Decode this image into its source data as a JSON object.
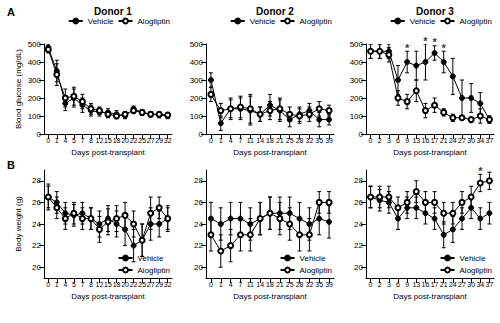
{
  "chart_data": [
    {
      "type": "line",
      "panel_label": "A",
      "title": "Donor 1",
      "x_label": "Days post-transplant",
      "y_label": "Blood glucose (mg/dL)",
      "categories": [
        "0",
        "1",
        "4",
        "5",
        "7",
        "8",
        "12",
        "15",
        "18",
        "20",
        "22",
        "25",
        "27",
        "29",
        "32"
      ],
      "series": [
        {
          "name": "Vehicle",
          "color": "#000000",
          "marker": "filled circle",
          "values": [
            480,
            350,
            170,
            200,
            160,
            130,
            120,
            120,
            110,
            100,
            140,
            120,
            110,
            105,
            100
          ],
          "errors": [
            20,
            60,
            40,
            50,
            40,
            30,
            20,
            20,
            20,
            15,
            15,
            15,
            15,
            15,
            15
          ]
        },
        {
          "name": "Alogliptin",
          "color": "#000000",
          "marker": "open circle",
          "values": [
            470,
            330,
            200,
            210,
            180,
            140,
            130,
            110,
            100,
            110,
            130,
            120,
            110,
            110,
            105
          ],
          "errors": [
            20,
            60,
            50,
            50,
            40,
            30,
            20,
            20,
            15,
            15,
            15,
            15,
            15,
            15,
            15
          ]
        }
      ],
      "ylim": [
        0,
        500
      ],
      "yticks": [
        0,
        100,
        200,
        300,
        400,
        500
      ],
      "grid": false,
      "legend": "top right"
    },
    {
      "type": "line",
      "title": "Donor 2",
      "x_label": "Days post-transplant",
      "categories": [
        "0",
        "1",
        "4",
        "7",
        "11",
        "14",
        "18",
        "21",
        "25",
        "28",
        "32",
        "35",
        "39"
      ],
      "series": [
        {
          "name": "Vehicle",
          "color": "#000000",
          "marker": "filled circle",
          "values": [
            300,
            60,
            140,
            140,
            130,
            110,
            160,
            130,
            80,
            110,
            130,
            80,
            80
          ],
          "errors": [
            40,
            40,
            60,
            60,
            80,
            40,
            60,
            60,
            40,
            40,
            40,
            40,
            30
          ]
        },
        {
          "name": "Alogliptin",
          "color": "#000000",
          "marker": "open circle",
          "values": [
            220,
            130,
            140,
            150,
            140,
            110,
            130,
            140,
            110,
            100,
            110,
            140,
            130
          ],
          "errors": [
            40,
            40,
            50,
            60,
            80,
            40,
            50,
            60,
            40,
            40,
            40,
            40,
            30
          ]
        }
      ],
      "ylim": [
        0,
        500
      ],
      "yticks": [
        0,
        100,
        200,
        300,
        400,
        500
      ],
      "grid": false,
      "legend": "top right"
    },
    {
      "type": "line",
      "title": "Donor 3",
      "x_label": "Days post-transplant",
      "categories": [
        "0",
        "2",
        "3",
        "6",
        "9",
        "13",
        "16",
        "17",
        "21",
        "24",
        "27",
        "30",
        "34",
        "37"
      ],
      "series": [
        {
          "name": "Vehicle",
          "color": "#000000",
          "marker": "filled circle",
          "values": [
            460,
            460,
            460,
            300,
            400,
            380,
            400,
            450,
            400,
            320,
            200,
            200,
            170,
            80
          ],
          "errors": [
            40,
            40,
            40,
            80,
            60,
            80,
            100,
            40,
            60,
            100,
            100,
            80,
            60,
            20
          ]
        },
        {
          "name": "Alogliptin",
          "color": "#000000",
          "marker": "open circle",
          "values": [
            460,
            460,
            440,
            200,
            180,
            240,
            130,
            160,
            120,
            90,
            90,
            80,
            100,
            80
          ],
          "errors": [
            40,
            40,
            40,
            40,
            40,
            60,
            40,
            40,
            20,
            20,
            10,
            10,
            40,
            20
          ]
        }
      ],
      "annotations": [
        {
          "x": "9",
          "text": "*"
        },
        {
          "x": "16",
          "text": "*"
        },
        {
          "x": "17",
          "text": "*"
        },
        {
          "x": "21",
          "text": "*"
        }
      ],
      "ylim": [
        0,
        500
      ],
      "yticks": [
        0,
        100,
        200,
        300,
        400,
        500
      ],
      "grid": false,
      "legend": "top right"
    },
    {
      "type": "line",
      "panel_label": "B",
      "x_label": "Days post-transplant",
      "y_label": "Body weight (g)",
      "categories": [
        "0",
        "1",
        "4",
        "5",
        "7",
        "8",
        "12",
        "15",
        "18",
        "20",
        "22",
        "25",
        "27",
        "29",
        "32"
      ],
      "series": [
        {
          "name": "Vehicle",
          "color": "#000000",
          "marker": "filled circle",
          "values": [
            26.5,
            26,
            25,
            24.8,
            25,
            24.5,
            24,
            24.5,
            24,
            23.5,
            22,
            22.5,
            24,
            24,
            24.5
          ],
          "errors": [
            1.2,
            1,
            1,
            1,
            1,
            1,
            1.2,
            1.2,
            1.2,
            1.5,
            1.5,
            1.5,
            1.5,
            1.2,
            1.2
          ]
        },
        {
          "name": "Alogliptin",
          "color": "#000000",
          "marker": "open circle",
          "values": [
            26.5,
            25.5,
            24.5,
            25,
            24.5,
            24.5,
            23.5,
            24.2,
            24.5,
            24.8,
            24,
            22.5,
            25,
            25.5,
            24.5
          ],
          "errors": [
            1,
            1,
            1,
            1,
            1,
            1,
            1.2,
            1.2,
            1.2,
            1.2,
            1.2,
            1.5,
            1.5,
            1,
            1
          ]
        }
      ],
      "ylim": [
        19,
        29
      ],
      "yticks": [
        20,
        22,
        24,
        26,
        28
      ],
      "grid": false,
      "legend": "lower right"
    },
    {
      "type": "line",
      "x_label": "Days post-transplant",
      "categories": [
        "0",
        "1",
        "4",
        "7",
        "11",
        "14",
        "18",
        "21",
        "25",
        "28",
        "32",
        "35",
        "39"
      ],
      "series": [
        {
          "name": "Vehicle",
          "color": "#000000",
          "marker": "filled circle",
          "values": [
            24.5,
            24,
            24.5,
            24.5,
            24,
            24.5,
            25,
            25,
            25,
            24.5,
            24,
            24.5,
            24.2
          ],
          "errors": [
            1.5,
            1.5,
            1.5,
            1.5,
            1.5,
            1.5,
            1.5,
            1.5,
            1.5,
            1.5,
            1.5,
            1.5,
            1.5
          ]
        },
        {
          "name": "Alogliptin",
          "color": "#000000",
          "marker": "open circle",
          "values": [
            23,
            21.5,
            22,
            23,
            23,
            24.5,
            25,
            24.5,
            24,
            23,
            23,
            26,
            26
          ],
          "errors": [
            1.5,
            1.5,
            1.5,
            1.5,
            1.5,
            1.5,
            1.5,
            1.5,
            1.5,
            1.5,
            1.5,
            1,
            1
          ]
        }
      ],
      "ylim": [
        19,
        29
      ],
      "yticks": [
        20,
        22,
        24,
        26,
        28
      ],
      "grid": false,
      "legend": "lower right"
    },
    {
      "type": "line",
      "x_label": "Days post-transplant",
      "categories": [
        "0",
        "2",
        "3",
        "6",
        "9",
        "13",
        "16",
        "17",
        "21",
        "24",
        "27",
        "30",
        "34",
        "37"
      ],
      "series": [
        {
          "name": "Vehicle",
          "color": "#000000",
          "marker": "filled circle",
          "values": [
            26.5,
            26.2,
            26,
            24.5,
            25.5,
            25.5,
            25,
            24.5,
            23,
            23.5,
            24.5,
            25.5,
            24.5,
            25
          ],
          "errors": [
            1,
            1,
            1,
            1,
            1,
            1,
            1,
            1,
            1.2,
            1.2,
            1,
            1,
            1,
            1
          ]
        },
        {
          "name": "Alogliptin",
          "color": "#000000",
          "marker": "open circle",
          "values": [
            26.5,
            26.5,
            26.5,
            25.5,
            26,
            27,
            26,
            26,
            25,
            25,
            26,
            26.5,
            27.8,
            28
          ],
          "errors": [
            1,
            1,
            1,
            1,
            1,
            1,
            1,
            1,
            1,
            1,
            1,
            1,
            0.8,
            0.8
          ]
        }
      ],
      "annotations": [
        {
          "x": "34",
          "text": "*"
        }
      ],
      "ylim": [
        19,
        29
      ],
      "yticks": [
        20,
        22,
        24,
        26,
        28
      ],
      "grid": false,
      "legend": "lower right"
    }
  ]
}
